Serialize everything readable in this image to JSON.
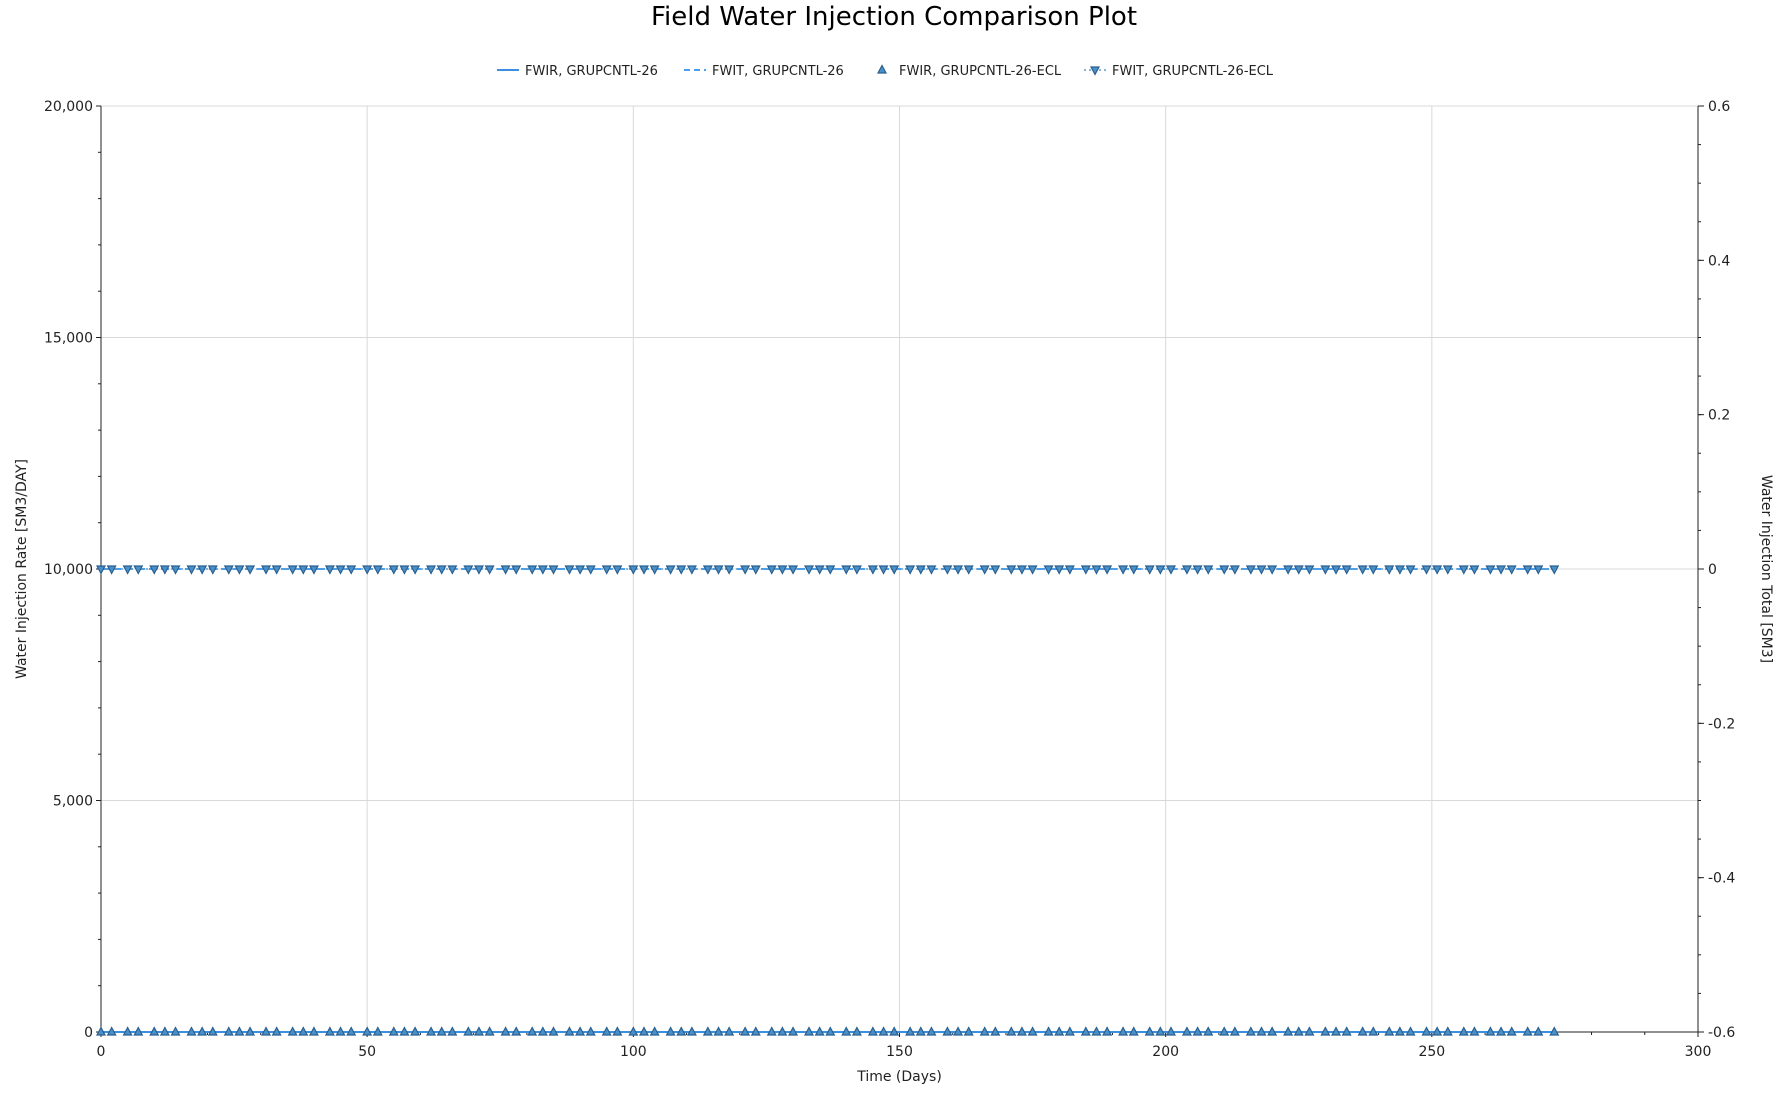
{
  "chart_data": {
    "type": "line",
    "title": "Field Water Injection Comparison Plot",
    "xlabel": "Time (Days)",
    "ylabel_left": "Water Injection Rate [SM3/DAY]",
    "ylabel_right": "Water Injection Total [SM3]",
    "xlim": [
      0,
      300
    ],
    "ylim_left": [
      0,
      20000
    ],
    "ylim_right": [
      -0.6,
      0.6
    ],
    "x_ticks": [
      "0",
      "50",
      "100",
      "150",
      "200",
      "250",
      "300"
    ],
    "y_left_ticks": [
      "0",
      "5,000",
      "10,000",
      "15,000",
      "20,000"
    ],
    "y_right_ticks": [
      "-0.6",
      "-0.4",
      "-0.2",
      "0",
      "0.2",
      "0.4",
      "0.6"
    ],
    "grid": true,
    "legend_position": "top-center",
    "series": [
      {
        "name": "FWIR, GRUPCNTL-26",
        "axis": "left",
        "style": "solid",
        "marker": "none",
        "color": "#3b8fe0",
        "x_start": 0,
        "x_end": 273,
        "value": 0
      },
      {
        "name": "FWIT, GRUPCNTL-26",
        "axis": "right",
        "style": "dashed",
        "marker": "none",
        "color": "#4a9ff0",
        "x_start": 0,
        "x_end": 273,
        "value": 0
      },
      {
        "name": "FWIR, GRUPCNTL-26-ECL",
        "axis": "left",
        "style": "none",
        "marker": "triangle-up",
        "color": "#2a5f8f",
        "x_start": 0,
        "x_end": 273,
        "value": 0
      },
      {
        "name": "FWIT, GRUPCNTL-26-ECL",
        "axis": "right",
        "style": "dotted",
        "marker": "triangle-down",
        "color": "#2a5f8f",
        "x_start": 0,
        "x_end": 273,
        "value": 0
      }
    ],
    "marker_x": [
      0,
      2,
      5,
      7,
      10,
      12,
      14,
      17,
      19,
      21,
      24,
      26,
      28,
      31,
      33,
      36,
      38,
      40,
      43,
      45,
      47,
      50,
      52,
      55,
      57,
      59,
      62,
      64,
      66,
      69,
      71,
      73,
      76,
      78,
      81,
      83,
      85,
      88,
      90,
      92,
      95,
      97,
      100,
      102,
      104,
      107,
      109,
      111,
      114,
      116,
      118,
      121,
      123,
      126,
      128,
      130,
      133,
      135,
      137,
      140,
      142,
      145,
      147,
      149,
      152,
      154,
      156,
      159,
      161,
      163,
      166,
      168,
      171,
      173,
      175,
      178,
      180,
      182,
      185,
      187,
      189,
      192,
      194,
      197,
      199,
      201,
      204,
      206,
      208,
      211,
      213,
      216,
      218,
      220,
      223,
      225,
      227,
      230,
      232,
      234,
      237,
      239,
      242,
      244,
      246,
      249,
      251,
      253,
      256,
      258,
      261,
      263,
      265,
      268,
      270,
      273
    ]
  },
  "colors": {
    "grid": "#d9d9d9",
    "axis": "#222222",
    "line_blue": "#3b8fe0",
    "marker_dark": "#2a5f8f"
  }
}
